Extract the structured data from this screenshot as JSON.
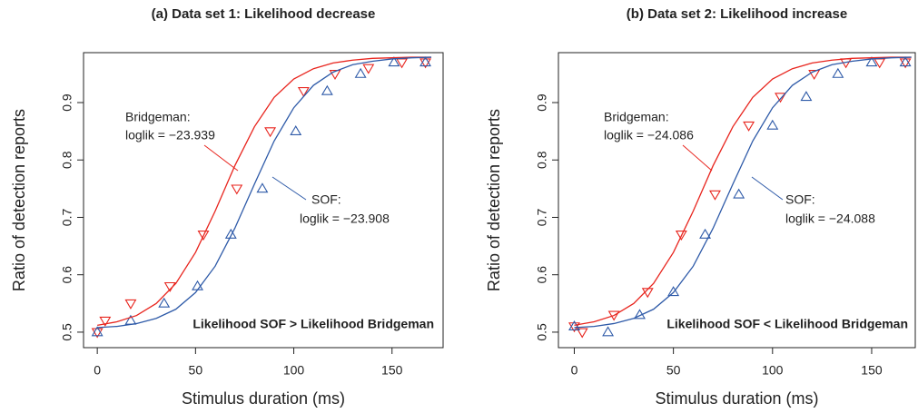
{
  "chart_data": [
    {
      "type": "line",
      "title": "(a) Data set 1: Likelihood decrease",
      "xlabel": "Stimulus duration (ms)",
      "ylabel": "Ratio of detection reports",
      "xlim": [
        -7,
        176
      ],
      "ylim": [
        0.473,
        0.987
      ],
      "xticks": [
        0,
        50,
        100,
        150
      ],
      "yticks": [
        0.5,
        0.6,
        0.7,
        0.8,
        0.9
      ],
      "series": [
        {
          "color": "#e8251e",
          "marker": "down",
          "x": [
            0,
            4,
            17,
            37,
            54,
            71,
            88,
            105,
            121,
            138,
            155,
            167
          ],
          "values": [
            0.5,
            0.52,
            0.55,
            0.58,
            0.67,
            0.75,
            0.85,
            0.92,
            0.95,
            0.96,
            0.97,
            0.97
          ]
        },
        {
          "color": "#2e5aa8",
          "marker": "up",
          "x": [
            0,
            17,
            34,
            51,
            68,
            84,
            101,
            117,
            134,
            151,
            167
          ],
          "values": [
            0.5,
            0.52,
            0.55,
            0.58,
            0.67,
            0.75,
            0.85,
            0.92,
            0.95,
            0.97,
            0.97
          ]
        },
        {
          "color": "#e8251e",
          "marker": "none",
          "x": [
            0,
            10,
            20,
            30,
            40,
            50,
            60,
            70,
            80,
            90,
            100,
            110,
            120,
            130,
            140,
            150,
            160,
            170
          ],
          "values": [
            0.512,
            0.518,
            0.529,
            0.55,
            0.585,
            0.639,
            0.711,
            0.79,
            0.858,
            0.909,
            0.941,
            0.959,
            0.969,
            0.974,
            0.977,
            0.978,
            0.979,
            0.979
          ]
        },
        {
          "color": "#2e5aa8",
          "marker": "none",
          "x": [
            0,
            10,
            20,
            30,
            40,
            50,
            60,
            70,
            80,
            90,
            100,
            110,
            120,
            130,
            140,
            150,
            160,
            170
          ],
          "values": [
            0.508,
            0.51,
            0.515,
            0.524,
            0.54,
            0.569,
            0.615,
            0.681,
            0.758,
            0.833,
            0.891,
            0.93,
            0.953,
            0.966,
            0.972,
            0.976,
            0.978,
            0.979
          ]
        }
      ],
      "annotations": [
        {
          "text": "Bridgeman:",
          "color": "#e8251e"
        },
        {
          "text": "loglik = −23.939",
          "color": "#e8251e"
        },
        {
          "text": "SOF:",
          "color": "#2e5aa8"
        },
        {
          "text": "loglik = −23.908",
          "color": "#2e5aa8"
        },
        {
          "text": "Likelihood SOF > Likelihood Bridgeman",
          "color": "#111111"
        }
      ]
    },
    {
      "type": "line",
      "title": "(b) Data set 2: Likelihood increase",
      "xlabel": "Stimulus duration (ms)",
      "ylabel": "Ratio of detection reports",
      "xlim": [
        -8,
        172
      ],
      "ylim": [
        0.473,
        0.987
      ],
      "xticks": [
        0,
        50,
        100,
        150
      ],
      "yticks": [
        0.5,
        0.6,
        0.7,
        0.8,
        0.9
      ],
      "series": [
        {
          "color": "#e8251e",
          "marker": "down",
          "x": [
            0,
            4,
            20,
            37,
            54,
            71,
            88,
            104,
            121,
            137,
            154,
            167
          ],
          "values": [
            0.51,
            0.5,
            0.53,
            0.57,
            0.67,
            0.74,
            0.86,
            0.91,
            0.95,
            0.97,
            0.97,
            0.97
          ]
        },
        {
          "color": "#2e5aa8",
          "marker": "up",
          "x": [
            0,
            17,
            33,
            50,
            66,
            83,
            100,
            117,
            133,
            150,
            167
          ],
          "values": [
            0.51,
            0.5,
            0.53,
            0.57,
            0.67,
            0.74,
            0.86,
            0.91,
            0.95,
            0.97,
            0.97
          ]
        },
        {
          "color": "#e8251e",
          "marker": "none",
          "x": [
            0,
            10,
            20,
            30,
            40,
            50,
            60,
            70,
            80,
            90,
            100,
            110,
            120,
            130,
            140,
            150,
            160,
            170
          ],
          "values": [
            0.512,
            0.518,
            0.529,
            0.55,
            0.585,
            0.639,
            0.711,
            0.79,
            0.858,
            0.909,
            0.941,
            0.959,
            0.969,
            0.974,
            0.977,
            0.978,
            0.979,
            0.979
          ]
        },
        {
          "color": "#2e5aa8",
          "marker": "none",
          "x": [
            0,
            10,
            20,
            30,
            40,
            50,
            60,
            70,
            80,
            90,
            100,
            110,
            120,
            130,
            140,
            150,
            160,
            170
          ],
          "values": [
            0.508,
            0.51,
            0.515,
            0.524,
            0.54,
            0.569,
            0.615,
            0.681,
            0.758,
            0.833,
            0.891,
            0.93,
            0.953,
            0.966,
            0.972,
            0.976,
            0.978,
            0.979
          ]
        }
      ],
      "annotations": [
        {
          "text": "Bridgeman:",
          "color": "#e8251e"
        },
        {
          "text": "loglik = −24.086",
          "color": "#e8251e"
        },
        {
          "text": "SOF:",
          "color": "#2e5aa8"
        },
        {
          "text": "loglik = −24.088",
          "color": "#2e5aa8"
        },
        {
          "text": "Likelihood SOF < Likelihood Bridgeman",
          "color": "#111111"
        }
      ]
    }
  ]
}
